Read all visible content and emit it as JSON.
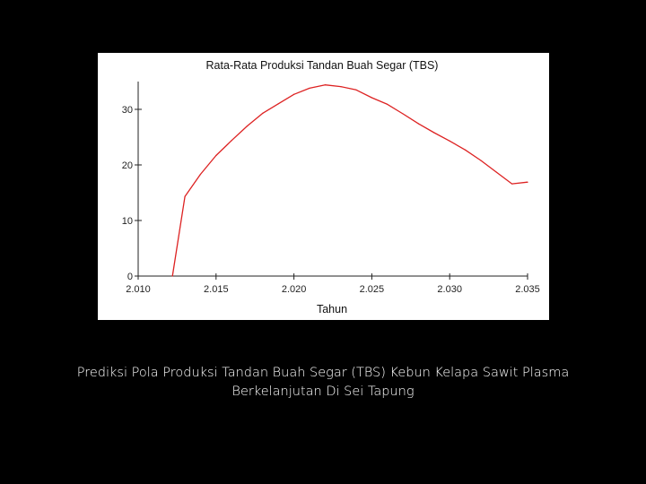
{
  "slide": {
    "caption_line1": "Prediksi  Pola  Produksi  Tandan  Buah  Segar (TBS)  Kebun  Kelapa Sawit  Plasma",
    "caption_line2": "Berkelanjutan Di Sei Tapung"
  },
  "chart_data": {
    "type": "line",
    "title": "Rata-Rata Produksi Tandan Buah Segar (TBS)",
    "xlabel": "Tahun",
    "ylabel": "",
    "xlim": [
      2010,
      2035
    ],
    "ylim": [
      0,
      35
    ],
    "x_ticks": [
      2010,
      2015,
      2020,
      2025,
      2030,
      2035
    ],
    "x_tick_labels": [
      "2.010",
      "2.015",
      "2.020",
      "2.025",
      "2.030",
      "2.035"
    ],
    "y_ticks": [
      0,
      10,
      20,
      30
    ],
    "y_tick_labels": [
      "0",
      "10",
      "20",
      "30"
    ],
    "grid": false,
    "line_color": "#dd2222",
    "series": [
      {
        "name": "",
        "x": [
          2012.2,
          2013,
          2014,
          2015,
          2016,
          2017,
          2018,
          2019,
          2020,
          2021,
          2022,
          2023,
          2024,
          2025,
          2026,
          2027,
          2028,
          2029,
          2030,
          2031,
          2032,
          2033,
          2034,
          2035
        ],
        "values": [
          0,
          14.3,
          18.3,
          21.7,
          24.4,
          27.0,
          29.3,
          31.0,
          32.7,
          33.8,
          34.4,
          34.1,
          33.5,
          32.1,
          30.9,
          29.2,
          27.4,
          25.8,
          24.3,
          22.7,
          20.8,
          18.7,
          16.6,
          16.9
        ]
      }
    ]
  }
}
